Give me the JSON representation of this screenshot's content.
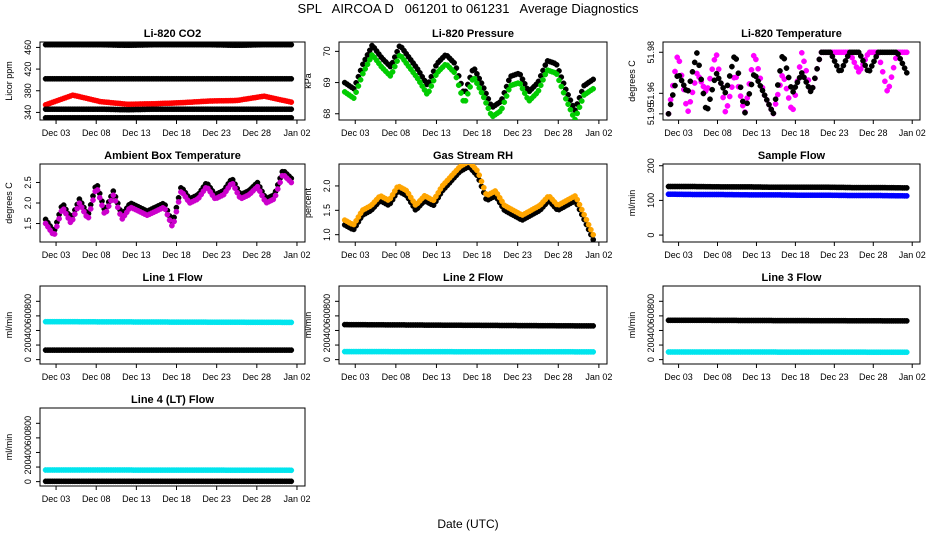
{
  "header": {
    "title": "SPL   AIRCOA D   061201 to 061231   Average Diagnostics"
  },
  "footer": {
    "xlabel": "Date (UTC)"
  },
  "x_tick_labels": [
    "Dec 03",
    "Dec 08",
    "Dec 13",
    "Dec 18",
    "Dec 23",
    "Dec 28",
    "Jan 02"
  ],
  "chart_data": [
    {
      "type": "scatter",
      "title": "Li-820 CO2",
      "ylabel": "Licor ppm",
      "yticks": [
        340,
        380,
        420,
        460
      ],
      "ylim": [
        326,
        470
      ],
      "xlim": [
        0,
        33
      ],
      "series": [
        {
          "name": "upper black",
          "color": "#000000",
          "values": [
            465,
            465,
            465,
            464,
            465,
            465,
            465,
            464,
            465,
            465
          ]
        },
        {
          "name": "mid black",
          "color": "#000000",
          "values": [
            402,
            402,
            402,
            402,
            402,
            402,
            402,
            402,
            402,
            402
          ]
        },
        {
          "name": "red",
          "color": "#ff0000",
          "values": [
            354,
            372,
            360,
            355,
            356,
            358,
            361,
            362,
            370,
            359
          ]
        },
        {
          "name": "lower black",
          "color": "#000000",
          "values": [
            346,
            346,
            346,
            345,
            346,
            346,
            346,
            346,
            346,
            346
          ]
        },
        {
          "name": "bottom black",
          "color": "#000000",
          "values": [
            330,
            330,
            330,
            330,
            330,
            330,
            330,
            330,
            330,
            330
          ]
        }
      ]
    },
    {
      "type": "scatter",
      "title": "Li-820 Pressure",
      "ylabel": "kPa",
      "yticks": [
        68.0,
        69.0,
        70.0
      ],
      "ylim": [
        67.8,
        70.3
      ],
      "xlim": [
        0,
        33
      ],
      "series": [
        {
          "name": "black",
          "color": "#000000",
          "values": [
            69.0,
            68.8,
            69.6,
            70.2,
            69.8,
            69.5,
            70.2,
            69.8,
            69.4,
            68.9,
            69.6,
            69.9,
            69.6,
            68.6,
            69.5,
            68.9,
            68.2,
            68.4,
            69.2,
            69.3,
            68.7,
            69.0,
            69.7,
            69.6,
            68.8,
            68.1,
            68.9,
            69.1
          ]
        },
        {
          "name": "green",
          "color": "#00cc00",
          "values": [
            68.7,
            68.5,
            69.3,
            69.9,
            69.5,
            69.2,
            69.9,
            69.5,
            69.1,
            68.6,
            69.3,
            69.6,
            69.3,
            68.3,
            69.2,
            68.6,
            67.9,
            68.1,
            68.9,
            69.0,
            68.4,
            68.7,
            69.4,
            69.3,
            68.5,
            67.8,
            68.6,
            68.8
          ]
        }
      ]
    },
    {
      "type": "scatter",
      "title": "Li-820 Temperature",
      "ylabel": "degrees C",
      "yticks": [
        51.95,
        51.96,
        51.98
      ],
      "ylim": [
        51.947,
        51.985
      ],
      "xlim": [
        0,
        33
      ],
      "series": [
        {
          "name": "magenta",
          "color": "#ff00ff",
          "values": [
            51.95,
            51.98,
            51.95,
            51.97,
            51.96,
            51.98,
            51.95,
            51.97,
            51.95,
            51.98,
            51.96,
            51.95,
            51.97,
            51.95,
            51.98,
            51.96,
            51.98,
            51.98,
            51.98,
            51.98,
            51.97,
            51.98,
            51.98,
            51.96,
            51.98,
            51.98
          ]
        },
        {
          "name": "black open",
          "color": "#000000",
          "values": [
            51.95,
            51.97,
            51.96,
            51.98,
            51.95,
            51.97,
            51.96,
            51.98,
            51.95,
            51.97,
            51.96,
            51.95,
            51.98,
            51.96,
            51.97,
            51.96,
            51.98,
            51.98,
            51.97,
            51.98,
            51.98,
            51.97,
            51.98,
            51.98,
            51.98,
            51.97
          ]
        }
      ]
    },
    {
      "type": "scatter",
      "title": "Ambient Box Temperature",
      "ylabel": "degrees C",
      "yticks": [
        1.5,
        2.0,
        2.5
      ],
      "ylim": [
        1.05,
        2.95
      ],
      "xlim": [
        0,
        33
      ],
      "series": [
        {
          "name": "black",
          "color": "#000000",
          "values": [
            1.6,
            1.3,
            2.0,
            1.6,
            2.1,
            1.7,
            2.5,
            1.8,
            2.3,
            1.7,
            2.0,
            1.9,
            1.8,
            1.9,
            2.0,
            1.5,
            2.4,
            2.1,
            2.2,
            2.5,
            2.2,
            2.3,
            2.6,
            2.2,
            2.3,
            2.5,
            2.1,
            2.2,
            2.8,
            2.6
          ]
        },
        {
          "name": "magenta",
          "color": "#cc00cc",
          "values": [
            1.5,
            1.2,
            1.9,
            1.5,
            2.0,
            1.6,
            2.4,
            1.7,
            2.2,
            1.6,
            1.9,
            1.8,
            1.7,
            1.8,
            1.9,
            1.4,
            2.3,
            2.0,
            2.1,
            2.4,
            2.1,
            2.2,
            2.5,
            2.1,
            2.2,
            2.4,
            2.0,
            2.1,
            2.7,
            2.5
          ]
        }
      ]
    },
    {
      "type": "scatter",
      "title": "Gas Stream RH",
      "ylabel": "percent",
      "yticks": [
        1.0,
        1.5,
        2.0
      ],
      "ylim": [
        0.85,
        2.45
      ],
      "xlim": [
        0,
        33
      ],
      "series": [
        {
          "name": "black",
          "color": "#000000",
          "values": [
            1.2,
            1.1,
            1.4,
            1.5,
            1.7,
            1.6,
            1.9,
            1.8,
            1.5,
            1.7,
            1.6,
            1.9,
            2.1,
            2.3,
            2.4,
            2.2,
            1.7,
            1.8,
            1.5,
            1.4,
            1.3,
            1.4,
            1.5,
            1.7,
            1.5,
            1.6,
            1.7,
            1.3,
            0.9
          ]
        },
        {
          "name": "orange",
          "color": "#ffa500",
          "values": [
            1.3,
            1.2,
            1.5,
            1.6,
            1.8,
            1.7,
            2.0,
            1.9,
            1.6,
            1.8,
            1.7,
            2.0,
            2.2,
            2.4,
            2.5,
            2.3,
            1.8,
            1.9,
            1.6,
            1.5,
            1.4,
            1.5,
            1.6,
            1.8,
            1.6,
            1.7,
            1.8,
            1.4,
            1.0
          ]
        }
      ]
    },
    {
      "type": "scatter",
      "title": "Sample Flow",
      "ylabel": "ml/min",
      "yticks": [
        0,
        100,
        200
      ],
      "ylim": [
        -20,
        205
      ],
      "xlim": [
        0,
        33
      ],
      "series": [
        {
          "name": "black",
          "color": "#000000",
          "values": [
            140,
            140,
            139,
            139,
            138,
            138,
            138,
            137,
            137,
            136
          ]
        },
        {
          "name": "blue",
          "color": "#0000ff",
          "values": [
            118,
            117,
            117,
            116,
            116,
            115,
            115,
            114,
            114,
            113
          ]
        }
      ]
    },
    {
      "type": "scatter",
      "title": "Line 1 Flow",
      "ylabel": "ml/min",
      "yticks": [
        0,
        200,
        400,
        600,
        800
      ],
      "ylim": [
        -60,
        1010
      ],
      "xlim": [
        0,
        33
      ],
      "series": [
        {
          "name": "cyan",
          "color": "#00e5ee",
          "values": [
            520,
            520,
            518,
            517,
            516,
            515,
            514,
            513,
            512,
            511
          ]
        },
        {
          "name": "black",
          "color": "#000000",
          "values": [
            130,
            130,
            130,
            130,
            130,
            130,
            130,
            130,
            130,
            130
          ]
        }
      ]
    },
    {
      "type": "scatter",
      "title": "Line 2 Flow",
      "ylabel": "ml/min",
      "yticks": [
        0,
        200,
        400,
        600,
        800
      ],
      "ylim": [
        -60,
        1010
      ],
      "xlim": [
        0,
        33
      ],
      "series": [
        {
          "name": "black",
          "color": "#000000",
          "values": [
            480,
            478,
            476,
            474,
            472,
            470,
            468,
            466,
            464,
            462
          ]
        },
        {
          "name": "cyan",
          "color": "#00e5ee",
          "values": [
            110,
            110,
            109,
            109,
            108,
            108,
            108,
            107,
            107,
            106
          ]
        }
      ]
    },
    {
      "type": "scatter",
      "title": "Line 3 Flow",
      "ylabel": "ml/min",
      "yticks": [
        0,
        200,
        400,
        600,
        800
      ],
      "ylim": [
        -60,
        1010
      ],
      "xlim": [
        0,
        33
      ],
      "series": [
        {
          "name": "black",
          "color": "#000000",
          "values": [
            540,
            540,
            538,
            537,
            536,
            535,
            534,
            533,
            532,
            531
          ]
        },
        {
          "name": "cyan",
          "color": "#00e5ee",
          "values": [
            105,
            105,
            104,
            104,
            104,
            103,
            103,
            103,
            102,
            102
          ]
        }
      ]
    },
    {
      "type": "scatter",
      "title": "Line 4 (LT) Flow",
      "ylabel": "ml/min",
      "yticks": [
        0,
        200,
        400,
        600,
        800
      ],
      "ylim": [
        -60,
        1010
      ],
      "xlim": [
        0,
        33
      ],
      "series": [
        {
          "name": "cyan",
          "color": "#00e5ee",
          "values": [
            160,
            160,
            159,
            159,
            158,
            158,
            158,
            157,
            157,
            156
          ]
        },
        {
          "name": "black",
          "color": "#000000",
          "values": [
            5,
            5,
            5,
            5,
            5,
            5,
            5,
            5,
            5,
            5
          ]
        }
      ]
    }
  ]
}
